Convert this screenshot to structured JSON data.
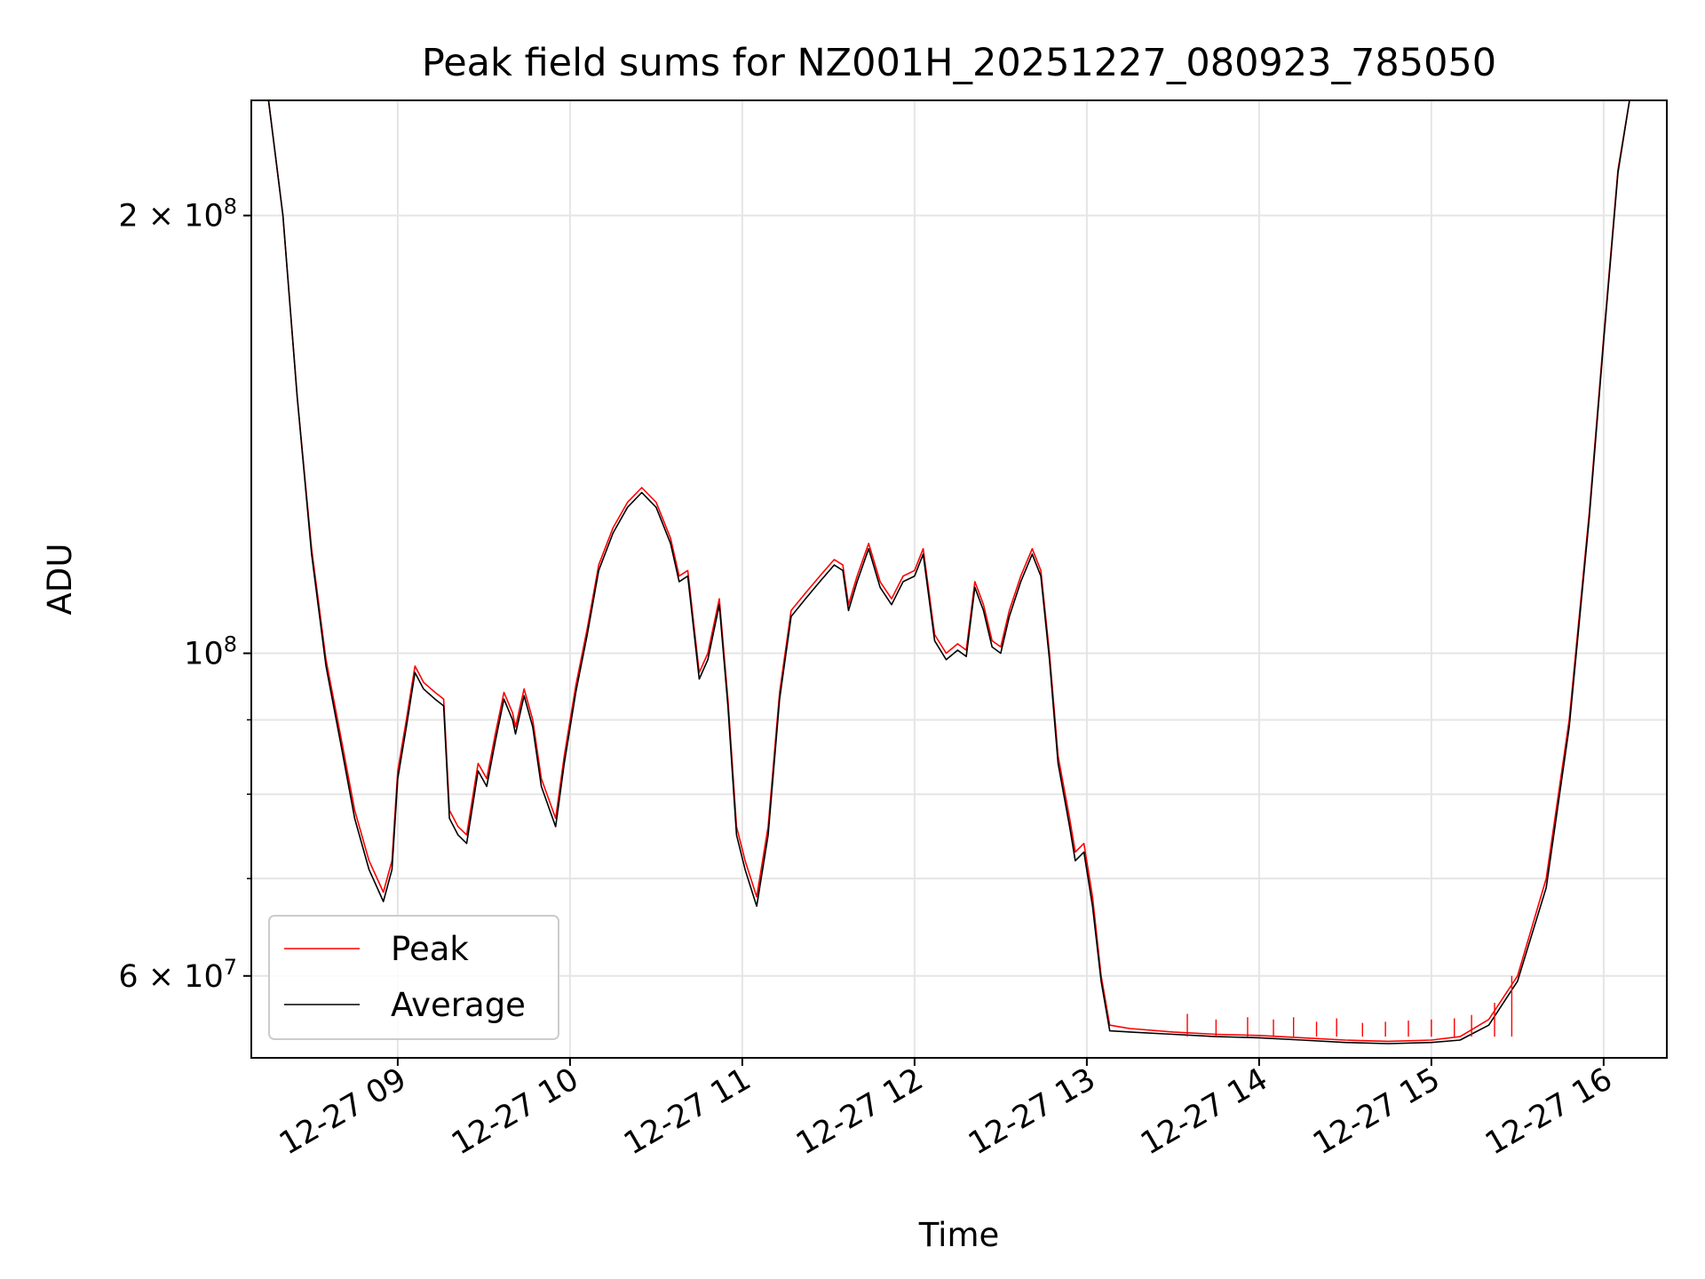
{
  "chart_data": {
    "type": "line",
    "title": "Peak field sums for NZ001H_20251227_080923_785050",
    "xlabel": "Time",
    "ylabel": "ADU",
    "y_scale": "log",
    "ylim": [
      52700000,
      240000000
    ],
    "xlim": [
      "2025-12-27 08:09",
      "2025-12-27 16:22"
    ],
    "x_tick_labels": [
      "12-27 09",
      "12-27 10",
      "12-27 11",
      "12-27 12",
      "12-27 13",
      "12-27 14",
      "12-27 15",
      "12-27 16"
    ],
    "y_tick_labels": [
      {
        "value": 200000000,
        "base": "2 × 10",
        "exp": "8"
      },
      {
        "value": 100000000,
        "base": "10",
        "exp": "8"
      },
      {
        "value": 60000000,
        "base": "6 × 10",
        "exp": "7"
      }
    ],
    "y_minor_ticks": [
      70000000,
      80000000,
      90000000
    ],
    "grid": true,
    "legend_placement": "lower-left",
    "colors": {
      "peak": "#ff0000",
      "average": "#000000"
    },
    "series": [
      {
        "name": "Peak",
        "color": "#ff0000",
        "points": [
          [
            "2025-12-27 08:09",
            240000000
          ],
          [
            "2025-12-27 08:15",
            240000000
          ],
          [
            "2025-12-27 08:20",
            200000000
          ],
          [
            "2025-12-27 08:25",
            150000000
          ],
          [
            "2025-12-27 08:30",
            118000000
          ],
          [
            "2025-12-27 08:35",
            99000000
          ],
          [
            "2025-12-27 08:40",
            88000000
          ],
          [
            "2025-12-27 08:45",
            78000000
          ],
          [
            "2025-12-27 08:50",
            72000000
          ],
          [
            "2025-12-27 08:55",
            68500000
          ],
          [
            "2025-12-27 08:58",
            72000000
          ],
          [
            "2025-12-27 09:00",
            83000000
          ],
          [
            "2025-12-27 09:03",
            90000000
          ],
          [
            "2025-12-27 09:06",
            98000000
          ],
          [
            "2025-12-27 09:09",
            95500000
          ],
          [
            "2025-12-27 09:13",
            94000000
          ],
          [
            "2025-12-27 09:16",
            93000000
          ],
          [
            "2025-12-27 09:18",
            78000000
          ],
          [
            "2025-12-27 09:21",
            76000000
          ],
          [
            "2025-12-27 09:24",
            75000000
          ],
          [
            "2025-12-27 09:28",
            84000000
          ],
          [
            "2025-12-27 09:31",
            82000000
          ],
          [
            "2025-12-27 09:34",
            88000000
          ],
          [
            "2025-12-27 09:37",
            94000000
          ],
          [
            "2025-12-27 09:40",
            91000000
          ],
          [
            "2025-12-27 09:41",
            89000000
          ],
          [
            "2025-12-27 09:44",
            94500000
          ],
          [
            "2025-12-27 09:47",
            90000000
          ],
          [
            "2025-12-27 09:50",
            82000000
          ],
          [
            "2025-12-27 09:55",
            77000000
          ],
          [
            "2025-12-27 09:58",
            85000000
          ],
          [
            "2025-12-27 10:02",
            95000000
          ],
          [
            "2025-12-27 10:06",
            104000000
          ],
          [
            "2025-12-27 10:10",
            115000000
          ],
          [
            "2025-12-27 10:15",
            122000000
          ],
          [
            "2025-12-27 10:20",
            127000000
          ],
          [
            "2025-12-27 10:25",
            130000000
          ],
          [
            "2025-12-27 10:30",
            127000000
          ],
          [
            "2025-12-27 10:35",
            120000000
          ],
          [
            "2025-12-27 10:38",
            113000000
          ],
          [
            "2025-12-27 10:41",
            114000000
          ],
          [
            "2025-12-27 10:45",
            97000000
          ],
          [
            "2025-12-27 10:48",
            100000000
          ],
          [
            "2025-12-27 10:52",
            109000000
          ],
          [
            "2025-12-27 10:55",
            93000000
          ],
          [
            "2025-12-27 10:58",
            76000000
          ],
          [
            "2025-12-27 11:01",
            72000000
          ],
          [
            "2025-12-27 11:05",
            68000000
          ],
          [
            "2025-12-27 11:09",
            76000000
          ],
          [
            "2025-12-27 11:13",
            94000000
          ],
          [
            "2025-12-27 11:17",
            107000000
          ],
          [
            "2025-12-27 11:22",
            110000000
          ],
          [
            "2025-12-27 11:27",
            113000000
          ],
          [
            "2025-12-27 11:32",
            116000000
          ],
          [
            "2025-12-27 11:35",
            115000000
          ],
          [
            "2025-12-27 11:37",
            108000000
          ],
          [
            "2025-12-27 11:40",
            113000000
          ],
          [
            "2025-12-27 11:44",
            119000000
          ],
          [
            "2025-12-27 11:48",
            112000000
          ],
          [
            "2025-12-27 11:52",
            109000000
          ],
          [
            "2025-12-27 11:56",
            113000000
          ],
          [
            "2025-12-27 12:00",
            114000000
          ],
          [
            "2025-12-27 12:03",
            118000000
          ],
          [
            "2025-12-27 12:07",
            103000000
          ],
          [
            "2025-12-27 12:11",
            100000000
          ],
          [
            "2025-12-27 12:15",
            101500000
          ],
          [
            "2025-12-27 12:18",
            100500000
          ],
          [
            "2025-12-27 12:21",
            112000000
          ],
          [
            "2025-12-27 12:24",
            108000000
          ],
          [
            "2025-12-27 12:27",
            102000000
          ],
          [
            "2025-12-27 12:30",
            101000000
          ],
          [
            "2025-12-27 12:33",
            107000000
          ],
          [
            "2025-12-27 12:37",
            113000000
          ],
          [
            "2025-12-27 12:41",
            118000000
          ],
          [
            "2025-12-27 12:44",
            114000000
          ],
          [
            "2025-12-27 12:47",
            100000000
          ],
          [
            "2025-12-27 12:50",
            85000000
          ],
          [
            "2025-12-27 12:54",
            77000000
          ],
          [
            "2025-12-27 12:56",
            73000000
          ],
          [
            "2025-12-27 12:59",
            74000000
          ],
          [
            "2025-12-27 13:02",
            68000000
          ],
          [
            "2025-12-27 13:05",
            60000000
          ],
          [
            "2025-12-27 13:08",
            55500000
          ],
          [
            "2025-12-27 13:15",
            55200000
          ],
          [
            "2025-12-27 13:30",
            54900000
          ],
          [
            "2025-12-27 13:45",
            54700000
          ],
          [
            "2025-12-27 14:00",
            54600000
          ],
          [
            "2025-12-27 14:15",
            54400000
          ],
          [
            "2025-12-27 14:30",
            54200000
          ],
          [
            "2025-12-27 14:45",
            54100000
          ],
          [
            "2025-12-27 15:00",
            54200000
          ],
          [
            "2025-12-27 15:10",
            54500000
          ],
          [
            "2025-12-27 15:20",
            56000000
          ],
          [
            "2025-12-27 15:30",
            60000000
          ],
          [
            "2025-12-27 15:40",
            70000000
          ],
          [
            "2025-12-27 15:48",
            90000000
          ],
          [
            "2025-12-27 15:55",
            125000000
          ],
          [
            "2025-12-27 16:00",
            165000000
          ],
          [
            "2025-12-27 16:05",
            215000000
          ],
          [
            "2025-12-27 16:09",
            240000000
          ],
          [
            "2025-12-27 16:22",
            240000000
          ]
        ]
      },
      {
        "name": "Average",
        "color": "#000000",
        "points": [
          [
            "2025-12-27 08:09",
            240000000
          ],
          [
            "2025-12-27 08:15",
            240000000
          ],
          [
            "2025-12-27 08:20",
            200000000
          ],
          [
            "2025-12-27 08:25",
            150000000
          ],
          [
            "2025-12-27 08:30",
            117000000
          ],
          [
            "2025-12-27 08:35",
            98000000
          ],
          [
            "2025-12-27 08:40",
            87000000
          ],
          [
            "2025-12-27 08:45",
            77000000
          ],
          [
            "2025-12-27 08:50",
            71000000
          ],
          [
            "2025-12-27 08:55",
            67500000
          ],
          [
            "2025-12-27 08:58",
            71000000
          ],
          [
            "2025-12-27 09:00",
            82000000
          ],
          [
            "2025-12-27 09:03",
            89000000
          ],
          [
            "2025-12-27 09:06",
            97000000
          ],
          [
            "2025-12-27 09:09",
            94500000
          ],
          [
            "2025-12-27 09:13",
            93000000
          ],
          [
            "2025-12-27 09:16",
            92000000
          ],
          [
            "2025-12-27 09:18",
            77000000
          ],
          [
            "2025-12-27 09:21",
            75000000
          ],
          [
            "2025-12-27 09:24",
            74000000
          ],
          [
            "2025-12-27 09:28",
            83000000
          ],
          [
            "2025-12-27 09:31",
            81000000
          ],
          [
            "2025-12-27 09:34",
            87000000
          ],
          [
            "2025-12-27 09:37",
            93000000
          ],
          [
            "2025-12-27 09:40",
            90000000
          ],
          [
            "2025-12-27 09:41",
            88000000
          ],
          [
            "2025-12-27 09:44",
            93500000
          ],
          [
            "2025-12-27 09:47",
            89000000
          ],
          [
            "2025-12-27 09:50",
            81000000
          ],
          [
            "2025-12-27 09:55",
            76000000
          ],
          [
            "2025-12-27 09:58",
            84000000
          ],
          [
            "2025-12-27 10:02",
            94000000
          ],
          [
            "2025-12-27 10:06",
            103000000
          ],
          [
            "2025-12-27 10:10",
            114000000
          ],
          [
            "2025-12-27 10:15",
            121000000
          ],
          [
            "2025-12-27 10:20",
            126000000
          ],
          [
            "2025-12-27 10:25",
            129000000
          ],
          [
            "2025-12-27 10:30",
            126000000
          ],
          [
            "2025-12-27 10:35",
            119000000
          ],
          [
            "2025-12-27 10:38",
            112000000
          ],
          [
            "2025-12-27 10:41",
            113000000
          ],
          [
            "2025-12-27 10:45",
            96000000
          ],
          [
            "2025-12-27 10:48",
            99000000
          ],
          [
            "2025-12-27 10:52",
            108000000
          ],
          [
            "2025-12-27 10:55",
            92000000
          ],
          [
            "2025-12-27 10:58",
            75000000
          ],
          [
            "2025-12-27 11:01",
            71000000
          ],
          [
            "2025-12-27 11:05",
            67000000
          ],
          [
            "2025-12-27 11:09",
            75000000
          ],
          [
            "2025-12-27 11:13",
            93000000
          ],
          [
            "2025-12-27 11:17",
            106000000
          ],
          [
            "2025-12-27 11:22",
            109000000
          ],
          [
            "2025-12-27 11:27",
            112000000
          ],
          [
            "2025-12-27 11:32",
            115000000
          ],
          [
            "2025-12-27 11:35",
            114000000
          ],
          [
            "2025-12-27 11:37",
            107000000
          ],
          [
            "2025-12-27 11:40",
            112000000
          ],
          [
            "2025-12-27 11:44",
            118000000
          ],
          [
            "2025-12-27 11:48",
            111000000
          ],
          [
            "2025-12-27 11:52",
            108000000
          ],
          [
            "2025-12-27 11:56",
            112000000
          ],
          [
            "2025-12-27 12:00",
            113000000
          ],
          [
            "2025-12-27 12:03",
            117000000
          ],
          [
            "2025-12-27 12:07",
            102000000
          ],
          [
            "2025-12-27 12:11",
            99000000
          ],
          [
            "2025-12-27 12:15",
            100500000
          ],
          [
            "2025-12-27 12:18",
            99500000
          ],
          [
            "2025-12-27 12:21",
            111000000
          ],
          [
            "2025-12-27 12:24",
            107000000
          ],
          [
            "2025-12-27 12:27",
            101000000
          ],
          [
            "2025-12-27 12:30",
            100000000
          ],
          [
            "2025-12-27 12:33",
            106000000
          ],
          [
            "2025-12-27 12:37",
            112000000
          ],
          [
            "2025-12-27 12:41",
            117000000
          ],
          [
            "2025-12-27 12:44",
            113000000
          ],
          [
            "2025-12-27 12:47",
            99000000
          ],
          [
            "2025-12-27 12:50",
            84000000
          ],
          [
            "2025-12-27 12:54",
            76000000
          ],
          [
            "2025-12-27 12:56",
            72000000
          ],
          [
            "2025-12-27 12:59",
            73000000
          ],
          [
            "2025-12-27 13:02",
            67000000
          ],
          [
            "2025-12-27 13:05",
            59500000
          ],
          [
            "2025-12-27 13:08",
            55000000
          ],
          [
            "2025-12-27 13:15",
            54900000
          ],
          [
            "2025-12-27 13:30",
            54700000
          ],
          [
            "2025-12-27 13:45",
            54500000
          ],
          [
            "2025-12-27 14:00",
            54400000
          ],
          [
            "2025-12-27 14:15",
            54200000
          ],
          [
            "2025-12-27 14:30",
            54000000
          ],
          [
            "2025-12-27 14:45",
            53900000
          ],
          [
            "2025-12-27 15:00",
            54000000
          ],
          [
            "2025-12-27 15:10",
            54200000
          ],
          [
            "2025-12-27 15:20",
            55500000
          ],
          [
            "2025-12-27 15:30",
            59500000
          ],
          [
            "2025-12-27 15:40",
            69000000
          ],
          [
            "2025-12-27 15:48",
            89000000
          ],
          [
            "2025-12-27 15:55",
            124000000
          ],
          [
            "2025-12-27 16:00",
            164000000
          ],
          [
            "2025-12-27 16:05",
            214000000
          ],
          [
            "2025-12-27 16:09",
            240000000
          ],
          [
            "2025-12-27 16:22",
            240000000
          ]
        ]
      }
    ],
    "peak_spikes": [
      [
        "2025-12-27 13:35",
        56500000
      ],
      [
        "2025-12-27 13:45",
        56000000
      ],
      [
        "2025-12-27 13:56",
        56200000
      ],
      [
        "2025-12-27 14:05",
        56000000
      ],
      [
        "2025-12-27 14:12",
        56200000
      ],
      [
        "2025-12-27 14:20",
        55800000
      ],
      [
        "2025-12-27 14:27",
        56100000
      ],
      [
        "2025-12-27 14:36",
        55700000
      ],
      [
        "2025-12-27 14:44",
        55800000
      ],
      [
        "2025-12-27 14:52",
        55900000
      ],
      [
        "2025-12-27 15:00",
        56000000
      ],
      [
        "2025-12-27 15:08",
        56100000
      ],
      [
        "2025-12-27 15:14",
        56400000
      ],
      [
        "2025-12-27 15:22",
        57500000
      ],
      [
        "2025-12-27 15:28",
        60000000
      ]
    ]
  }
}
